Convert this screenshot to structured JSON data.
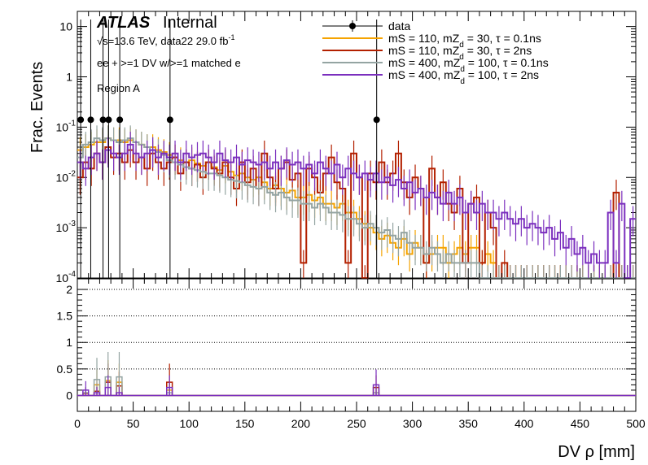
{
  "labels": {
    "atlas": "ATLAS",
    "internal": "Internal",
    "sqrt_s": "√s=13.6 TeV, data22 29.0 fb",
    "lumi_exp": "-1",
    "selection": "ee + >=1 DV w/>=1 matched e",
    "region": "Region A"
  },
  "chart_data": [
    {
      "type": "line",
      "ylabel": "Frac. Events",
      "y_scale": "log",
      "ylim": [
        0.0001,
        20
      ],
      "xlim": [
        0,
        500
      ],
      "grid": false,
      "legend_position": "top-right",
      "y_ticks": [
        {
          "value": 10,
          "label": "10"
        },
        {
          "value": 1,
          "label": "1"
        },
        {
          "value": 0.1,
          "label": "10",
          "exp": "-1"
        },
        {
          "value": 0.01,
          "label": "10",
          "exp": "-2"
        },
        {
          "value": 0.001,
          "label": "10",
          "exp": "-3"
        },
        {
          "value": 0.0001,
          "label": "10",
          "exp": "-4"
        }
      ],
      "series": [
        {
          "name": "data",
          "style": "points",
          "color": "#000000",
          "x": [
            3,
            12,
            23,
            28,
            38,
            83,
            268
          ],
          "y": [
            0.14,
            0.14,
            0.14,
            0.14,
            0.14,
            0.14,
            0.14
          ]
        },
        {
          "name_parts": [
            "mS = 110, mZ",
            "d",
            " = 30, τ = 0.1ns"
          ],
          "color": "#f5a300",
          "x": [
            5,
            10,
            15,
            20,
            25,
            30,
            35,
            40,
            45,
            50,
            55,
            60,
            65,
            70,
            75,
            80,
            85,
            90,
            95,
            100,
            105,
            110,
            115,
            120,
            125,
            130,
            135,
            140,
            145,
            150,
            155,
            160,
            165,
            170,
            175,
            180,
            185,
            190,
            195,
            200,
            205,
            210,
            215,
            220,
            225,
            230,
            235,
            240,
            245,
            250,
            255,
            260,
            265,
            270,
            275,
            280,
            285,
            290,
            295,
            300,
            305,
            310,
            315,
            320,
            325,
            330,
            335,
            340,
            345,
            350,
            355,
            360,
            365,
            370,
            375,
            380,
            385,
            390,
            395,
            400,
            405,
            410,
            415,
            420,
            425,
            430,
            435,
            440,
            445,
            450,
            455,
            460,
            465,
            470,
            475,
            480,
            485,
            490,
            495,
            500
          ],
          "y": [
            0.035,
            0.04,
            0.045,
            0.05,
            0.05,
            0.06,
            0.055,
            0.055,
            0.05,
            0.055,
            0.05,
            0.045,
            0.04,
            0.04,
            0.035,
            0.032,
            0.028,
            0.025,
            0.022,
            0.02,
            0.022,
            0.019,
            0.017,
            0.02,
            0.016,
            0.014,
            0.017,
            0.013,
            0.011,
            0.012,
            0.01,
            0.009,
            0.01,
            0.008,
            0.006,
            0.007,
            0.006,
            0.005,
            0.0055,
            0.004,
            0.004,
            0.0045,
            0.0035,
            0.004,
            0.003,
            0.003,
            0.0025,
            0.003,
            0.002,
            0.002,
            0.0015,
            0.0012,
            0.001,
            0.0008,
            0.0006,
            0.0007,
            0.0005,
            0.0004,
            0.0006,
            0.0003,
            0.0005,
            0.0004,
            0.0002,
            0.0003,
            0.0004,
            0.0004,
            0.0002,
            0.0003,
            0.0004,
            0.0003,
            0.0004,
            0.0004,
            0.0002,
            0.0003,
            0.0002,
            0.0001,
            0.0001,
            0.0001,
            0.0001,
            0.0001,
            0.0001,
            0.0001,
            0.0001,
            0.0001,
            0.0001,
            0.0001,
            0.0001,
            0.0001,
            0.0001,
            0.0001,
            0.0001,
            0.0001,
            0.0001,
            0.0001,
            0.0001,
            0.0001,
            0.0001,
            0.0001,
            0.0001,
            0.0001
          ]
        },
        {
          "name_parts": [
            "mS = 110, mZ",
            "d",
            " = 30, τ = 2ns"
          ],
          "color": "#b32000",
          "x": [
            5,
            10,
            15,
            20,
            25,
            30,
            35,
            40,
            45,
            50,
            55,
            60,
            65,
            70,
            75,
            80,
            85,
            90,
            95,
            100,
            105,
            110,
            115,
            120,
            125,
            130,
            135,
            140,
            145,
            150,
            155,
            160,
            165,
            170,
            175,
            180,
            185,
            190,
            195,
            200,
            205,
            210,
            215,
            220,
            225,
            230,
            235,
            240,
            245,
            250,
            255,
            260,
            265,
            270,
            275,
            280,
            285,
            290,
            295,
            300,
            305,
            310,
            315,
            320,
            325,
            330,
            335,
            340,
            345,
            350,
            355,
            360,
            365,
            370,
            375,
            380,
            385,
            390,
            395,
            400,
            405,
            410,
            415,
            420,
            425,
            430,
            435,
            440,
            445,
            450,
            455,
            460,
            465,
            470,
            475,
            480,
            485,
            490,
            495,
            500
          ],
          "y": [
            0.01,
            0.02,
            0.015,
            0.03,
            0.02,
            0.04,
            0.025,
            0.03,
            0.02,
            0.035,
            0.02,
            0.025,
            0.015,
            0.03,
            0.02,
            0.015,
            0.02,
            0.025,
            0.012,
            0.02,
            0.015,
            0.018,
            0.01,
            0.02,
            0.015,
            0.012,
            0.02,
            0.01,
            0.006,
            0.02,
            0.008,
            0.015,
            0.006,
            0.03,
            0.01,
            0.006,
            0.015,
            0.02,
            0.009,
            0.012,
            0.0002,
            0.015,
            0.01,
            0.005,
            0.012,
            0.025,
            0.008,
            0.006,
            0.0002,
            0.03,
            0.01,
            0.0001,
            0.012,
            0.008,
            0.02,
            0.008,
            0.012,
            0.03,
            0.008,
            0.004,
            0.01,
            0.006,
            0.0002,
            0.015,
            0.004,
            0.008,
            0.003,
            0.002,
            0.006,
            0.0002,
            0.003,
            0.004,
            0.0002,
            0.002,
            0.001,
            0.0001,
            0.0002,
            0.0001,
            0.0001,
            0.0001,
            0.0001,
            0.0001,
            0.0001,
            0.0001,
            0.0001,
            0.0001,
            0.0001,
            0.0001,
            0.0001,
            0.0001,
            0.0001,
            0.0001,
            0.0001,
            0.0001,
            0.0001,
            0.0001,
            0.005,
            0.0001,
            0.0001,
            0.0001
          ]
        },
        {
          "name_parts": [
            "mS = 400, mZ",
            "d",
            " = 100, τ = 0.1ns"
          ],
          "color": "#94a4a2",
          "x": [
            5,
            10,
            15,
            20,
            25,
            30,
            35,
            40,
            45,
            50,
            55,
            60,
            65,
            70,
            75,
            80,
            85,
            90,
            95,
            100,
            105,
            110,
            115,
            120,
            125,
            130,
            135,
            140,
            145,
            150,
            155,
            160,
            165,
            170,
            175,
            180,
            185,
            190,
            195,
            200,
            205,
            210,
            215,
            220,
            225,
            230,
            235,
            240,
            245,
            250,
            255,
            260,
            265,
            270,
            275,
            280,
            285,
            290,
            295,
            300,
            305,
            310,
            315,
            320,
            325,
            330,
            335,
            340,
            345,
            350,
            355,
            360,
            365,
            370,
            375,
            380,
            385,
            390,
            395,
            400,
            405,
            410,
            415,
            420,
            425,
            430,
            435,
            440,
            445,
            450,
            455,
            460,
            465,
            470,
            475,
            480,
            485,
            490,
            495,
            500
          ],
          "y": [
            0.025,
            0.045,
            0.05,
            0.06,
            0.055,
            0.06,
            0.055,
            0.05,
            0.055,
            0.06,
            0.05,
            0.045,
            0.04,
            0.035,
            0.032,
            0.028,
            0.022,
            0.02,
            0.018,
            0.016,
            0.015,
            0.014,
            0.013,
            0.012,
            0.012,
            0.011,
            0.01,
            0.009,
            0.0085,
            0.008,
            0.007,
            0.0065,
            0.006,
            0.0065,
            0.005,
            0.0045,
            0.005,
            0.004,
            0.0035,
            0.0035,
            0.003,
            0.003,
            0.0025,
            0.003,
            0.0025,
            0.002,
            0.002,
            0.0018,
            0.0015,
            0.0015,
            0.0012,
            0.001,
            0.0012,
            0.001,
            0.0008,
            0.0009,
            0.0007,
            0.0006,
            0.0008,
            0.0005,
            0.0004,
            0.0004,
            0.0003,
            0.0004,
            0.0003,
            0.0002,
            0.0003,
            0.0002,
            0.0002,
            0.0002,
            0.0002,
            0.0002,
            0.0001,
            0.0001,
            0.0001,
            0.0001,
            0.0001,
            0.0001,
            0.0001,
            0.0001,
            0.0001,
            0.0001,
            0.0001,
            0.0001,
            0.0001,
            0.0001,
            0.0001,
            0.0001,
            0.0001,
            0.0001,
            0.0001,
            0.0001,
            0.0001,
            0.0001,
            0.0001,
            0.0001,
            0.0001,
            0.0001,
            0.0001,
            0.0001
          ]
        },
        {
          "name_parts": [
            "mS = 400, mZ",
            "d",
            " = 100, τ = 2ns"
          ],
          "color": "#7b2fbe",
          "x": [
            5,
            10,
            15,
            20,
            25,
            30,
            35,
            40,
            45,
            50,
            55,
            60,
            65,
            70,
            75,
            80,
            85,
            90,
            95,
            100,
            105,
            110,
            115,
            120,
            125,
            130,
            135,
            140,
            145,
            150,
            155,
            160,
            165,
            170,
            175,
            180,
            185,
            190,
            195,
            200,
            205,
            210,
            215,
            220,
            225,
            230,
            235,
            240,
            245,
            250,
            255,
            260,
            265,
            270,
            275,
            280,
            285,
            290,
            295,
            300,
            305,
            310,
            315,
            320,
            325,
            330,
            335,
            340,
            345,
            350,
            355,
            360,
            365,
            370,
            375,
            380,
            385,
            390,
            395,
            400,
            405,
            410,
            415,
            420,
            425,
            430,
            435,
            440,
            445,
            450,
            455,
            460,
            465,
            470,
            475,
            480,
            485,
            490,
            495,
            500
          ],
          "y": [
            0.02,
            0.015,
            0.025,
            0.03,
            0.02,
            0.035,
            0.03,
            0.025,
            0.03,
            0.045,
            0.03,
            0.025,
            0.03,
            0.035,
            0.025,
            0.03,
            0.025,
            0.03,
            0.02,
            0.03,
            0.025,
            0.028,
            0.03,
            0.025,
            0.02,
            0.03,
            0.022,
            0.02,
            0.025,
            0.018,
            0.022,
            0.02,
            0.018,
            0.02,
            0.015,
            0.02,
            0.015,
            0.022,
            0.018,
            0.02,
            0.015,
            0.018,
            0.012,
            0.02,
            0.015,
            0.012,
            0.018,
            0.01,
            0.015,
            0.012,
            0.01,
            0.012,
            0.009,
            0.012,
            0.008,
            0.01,
            0.007,
            0.009,
            0.006,
            0.008,
            0.005,
            0.006,
            0.004,
            0.005,
            0.004,
            0.003,
            0.005,
            0.003,
            0.004,
            0.002,
            0.003,
            0.002,
            0.003,
            0.002,
            0.002,
            0.0015,
            0.002,
            0.0015,
            0.0012,
            0.0015,
            0.001,
            0.0012,
            0.001,
            0.0008,
            0.001,
            0.0006,
            0.0008,
            0.0004,
            0.0006,
            0.0003,
            0.0004,
            0.0002,
            0.0003,
            0.0002,
            0.0002,
            0.002,
            0.0002,
            0.003,
            0.0001,
            0.0015
          ]
        }
      ]
    },
    {
      "type": "line",
      "xlabel": "DV ρ [mm]",
      "xlim": [
        0,
        500
      ],
      "ylim": [
        -0.3,
        2.2
      ],
      "grid": true,
      "x_ticks": [
        0,
        50,
        100,
        150,
        200,
        250,
        300,
        350,
        400,
        450,
        500
      ],
      "y_ticks": [
        {
          "value": 0,
          "label": "0"
        },
        {
          "value": 0.5,
          "label": "0.5"
        },
        {
          "value": 1,
          "label": "1"
        },
        {
          "value": 1.5,
          "label": "1.5"
        },
        {
          "value": 2,
          "label": "2"
        }
      ],
      "series": [
        {
          "color": "#f5a300",
          "x": [
            5,
            10,
            15,
            20,
            25,
            30,
            35,
            40,
            80,
            85,
            265,
            270
          ],
          "y": [
            0.05,
            0.05,
            0.2,
            0.2,
            0.28,
            0.28,
            0.25,
            0.25,
            0.1,
            0.1,
            0.05,
            0.05
          ]
        },
        {
          "color": "#b32000",
          "x": [
            5,
            10,
            15,
            20,
            25,
            30,
            35,
            40,
            80,
            85,
            265,
            270
          ],
          "y": [
            0.04,
            0.04,
            0.08,
            0.08,
            0.25,
            0.25,
            0.18,
            0.18,
            0.25,
            0.25,
            0.15,
            0.15
          ]
        },
        {
          "color": "#94a4a2",
          "x": [
            5,
            10,
            15,
            20,
            25,
            30,
            35,
            40,
            80,
            85,
            265,
            270
          ],
          "y": [
            0.05,
            0.05,
            0.3,
            0.3,
            0.35,
            0.35,
            0.35,
            0.35,
            0.05,
            0.05,
            0.05,
            0.05
          ]
        },
        {
          "color": "#7b2fbe",
          "x": [
            5,
            10,
            15,
            20,
            25,
            30,
            35,
            40,
            80,
            85,
            265,
            270
          ],
          "y": [
            0.1,
            0.1,
            0.05,
            0.05,
            0.15,
            0.15,
            0.05,
            0.05,
            0.15,
            0.15,
            0.2,
            0.2
          ]
        }
      ]
    }
  ]
}
